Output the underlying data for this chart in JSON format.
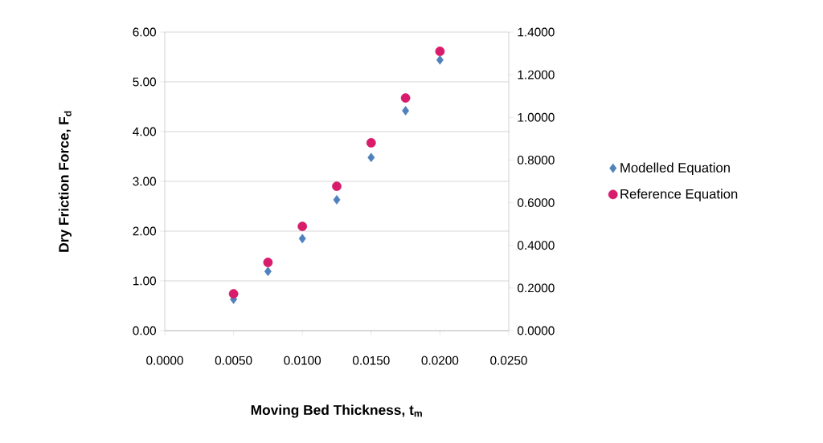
{
  "chart_data": {
    "type": "scatter",
    "xlabel": "Moving Bed Thickness, t$_{m}$",
    "ylabel": "Dry Friction Force, F$_{d}$",
    "x": [
      0.005,
      0.0075,
      0.01,
      0.0125,
      0.015,
      0.0175,
      0.02
    ],
    "series": [
      {
        "name": "Modelled Equation",
        "color": "#4f81bd",
        "marker": "diamond",
        "values": [
          0.63,
          1.19,
          1.85,
          2.63,
          3.48,
          4.42,
          5.44
        ]
      },
      {
        "name": "Reference Equation",
        "color": "#d81b6a",
        "marker": "circle",
        "axis": "y2",
        "values": [
          0.173,
          0.32,
          0.489,
          0.677,
          0.881,
          1.091,
          1.31
        ]
      }
    ],
    "xlim": [
      0,
      0.025
    ],
    "xticks": [
      {
        "value": 0,
        "label": "0.0000"
      },
      {
        "value": 0.005,
        "label": "0.0050"
      },
      {
        "value": 0.01,
        "label": "0.0100"
      },
      {
        "value": 0.015,
        "label": "0.0150"
      },
      {
        "value": 0.02,
        "label": "0.0200"
      },
      {
        "value": 0.025,
        "label": "0.0250"
      }
    ],
    "ylim": [
      0,
      6
    ],
    "yticks": [
      {
        "value": 0,
        "label": "0.00"
      },
      {
        "value": 1,
        "label": "1.00"
      },
      {
        "value": 2,
        "label": "2.00"
      },
      {
        "value": 3,
        "label": "3.00"
      },
      {
        "value": 4,
        "label": "4.00"
      },
      {
        "value": 5,
        "label": "5.00"
      },
      {
        "value": 6,
        "label": "6.00"
      }
    ],
    "y2lim": [
      0,
      1.4
    ],
    "y2ticks": [
      {
        "value": 0,
        "label": "0.0000"
      },
      {
        "value": 0.2,
        "label": "0.2000"
      },
      {
        "value": 0.4,
        "label": "0.4000"
      },
      {
        "value": 0.6,
        "label": "0.6000"
      },
      {
        "value": 0.8,
        "label": "0.8000"
      },
      {
        "value": 1,
        "label": "1.0000"
      },
      {
        "value": 1.2,
        "label": "1.2000"
      },
      {
        "value": 1.4,
        "label": "1.4000"
      }
    ],
    "grid": "y",
    "legend": "right"
  }
}
